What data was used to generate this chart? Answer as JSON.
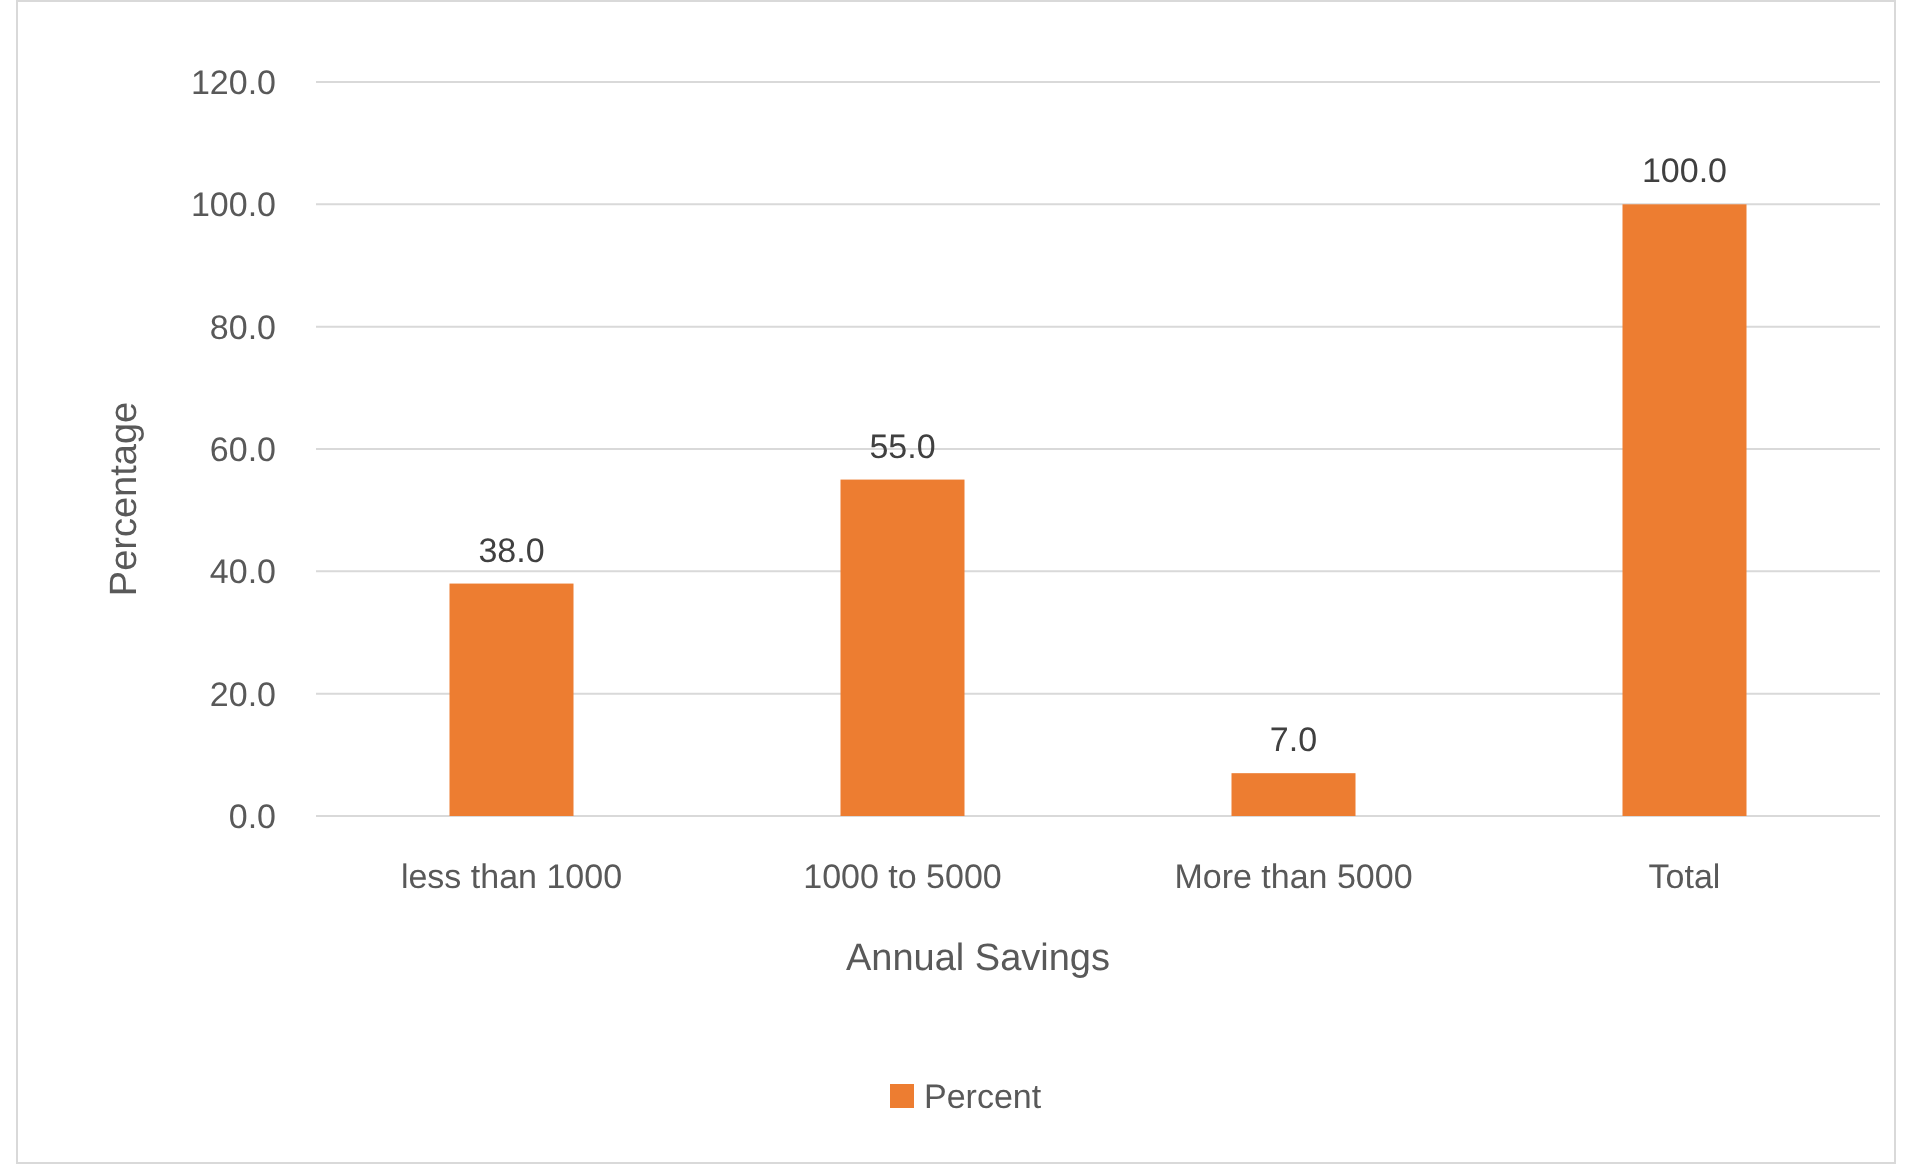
{
  "chart_data": {
    "type": "bar",
    "xlabel": "Annual Savings",
    "ylabel": "Percentage",
    "categories": [
      "less than 1000",
      "1000 to 5000",
      "More than 5000",
      "Total"
    ],
    "series": [
      {
        "name": "Percent",
        "color": "#ed7d31",
        "values": [
          38,
          55,
          7,
          100
        ],
        "value_labels": [
          "38.0",
          "55.0",
          "7.0",
          "100.0"
        ]
      }
    ],
    "ylim": [
      0,
      120
    ],
    "yticks": [
      {
        "value": 0,
        "label": "0.0"
      },
      {
        "value": 20,
        "label": "20.0"
      },
      {
        "value": 40,
        "label": "40.0"
      },
      {
        "value": 60,
        "label": "60.0"
      },
      {
        "value": 80,
        "label": "80.0"
      },
      {
        "value": 100,
        "label": "100.0"
      },
      {
        "value": 120,
        "label": "120.0"
      }
    ],
    "grid": "y",
    "legend": "bottom"
  }
}
